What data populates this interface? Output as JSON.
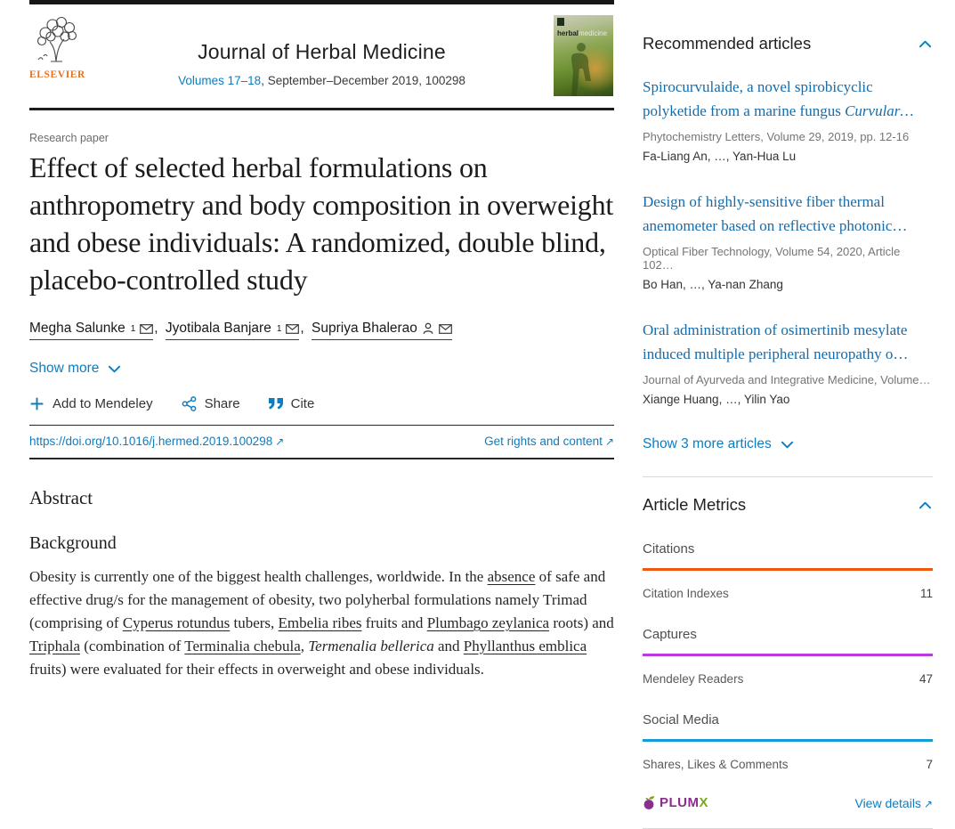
{
  "icons": {
    "external_link": "↗"
  },
  "header": {
    "publisher": "ELSEVIER",
    "journal_title": "Journal of Herbal Medicine",
    "volume_link": "Volumes 17–18",
    "issue_rest": ", September–December 2019, 100298",
    "cover": {
      "title_bold": "herbal",
      "title_light": "medicine"
    }
  },
  "article": {
    "type_label": "Research paper",
    "title": "Effect of selected herbal formulations on anthropometry and body composition in overweight and obese individuals: A randomized, double blind, placebo-controlled study",
    "author_separator": ",",
    "authors": [
      {
        "name": "Megha Salunke",
        "sup": "1"
      },
      {
        "name": "Jyotibala Banjare",
        "sup": "1"
      },
      {
        "name": "Supriya Bhalerao",
        "sup": ""
      }
    ],
    "show_more_label": "Show more",
    "toolbar": {
      "mendeley_label": "Add to Mendeley",
      "share_label": "Share",
      "cite_label": "Cite"
    },
    "doi_link": "https://doi.org/10.1016/j.hermed.2019.100298",
    "rights_link": "Get rights and content",
    "abstract_heading": "Abstract",
    "background_heading": "Background",
    "abstract_segments": [
      {
        "t": "Obesity is currently one of the biggest health challenges, worldwide. In the ",
        "s": "plain"
      },
      {
        "t": "absence",
        "s": "link"
      },
      {
        "t": " of safe and effective drug/s for the management of obesity, two polyherbal formulations namely Trimad (comprising of ",
        "s": "plain"
      },
      {
        "t": "Cyperus rotundus",
        "s": "link"
      },
      {
        "t": " tubers, ",
        "s": "plain"
      },
      {
        "t": "Embelia ribes",
        "s": "link"
      },
      {
        "t": " fruits and ",
        "s": "plain"
      },
      {
        "t": "Plumbago zeylanica",
        "s": "link"
      },
      {
        "t": " roots) and ",
        "s": "plain"
      },
      {
        "t": "Triphala",
        "s": "link"
      },
      {
        "t": " (combination of ",
        "s": "plain"
      },
      {
        "t": "Terminalia chebula",
        "s": "link"
      },
      {
        "t": ", ",
        "s": "plain"
      },
      {
        "t": "Termenalia bellerica",
        "s": "italic"
      },
      {
        "t": " and ",
        "s": "plain"
      },
      {
        "t": "Phyllanthus emblica",
        "s": "link"
      },
      {
        "t": " fruits) were evaluated for their effects in overweight and obese individuals.",
        "s": "plain"
      }
    ]
  },
  "recommended": {
    "heading": "Recommended articles",
    "articles": [
      {
        "title": "Spirocurvulaide, a novel spirobicyclic polyketide from a marine fungus ",
        "title_italic": "Curvular…",
        "meta": "Phytochemistry Letters, Volume 29, 2019, pp. 12-16",
        "authors": "Fa-Liang An, …, Yan-Hua Lu"
      },
      {
        "title": "Design of highly-sensitive fiber thermal anemometer based on reflective photonic…",
        "title_italic": "",
        "meta": "Optical Fiber Technology, Volume 54, 2020, Article 102…",
        "authors": "Bo Han, …, Ya-nan Zhang"
      },
      {
        "title": "Oral administration of osimertinib mesylate induced multiple peripheral neuropathy o…",
        "title_italic": "",
        "meta": "Journal of Ayurveda and Integrative Medicine, Volume…",
        "authors": "Xiange Huang, …, Yilin Yao"
      }
    ],
    "show_more_label": "Show 3 more articles"
  },
  "metrics": {
    "heading": "Article Metrics",
    "groups": [
      {
        "label": "Citations",
        "color": "#f0570f",
        "rows": [
          {
            "label": "Citation Indexes",
            "value": "11"
          }
        ]
      },
      {
        "label": "Captures",
        "color": "#bb3ade",
        "rows": [
          {
            "label": "Mendeley Readers",
            "value": "47"
          }
        ]
      },
      {
        "label": "Social Media",
        "color": "#149bdc",
        "rows": [
          {
            "label": "Shares, Likes & Comments",
            "value": "7"
          }
        ]
      }
    ],
    "plumx": {
      "word": "PLUM",
      "x": "X"
    },
    "view_details_label": "View details"
  },
  "colors": {
    "link_blue": "#0d7dc1",
    "recommended_title_blue": "#166ba9",
    "elsevier_orange": "#e9711c",
    "citations_orange": "#f0570f",
    "captures_purple": "#bb3ade",
    "social_blue": "#149bdc",
    "plumx_purple": "#8d2c8f",
    "plumx_green": "#7aa818"
  }
}
